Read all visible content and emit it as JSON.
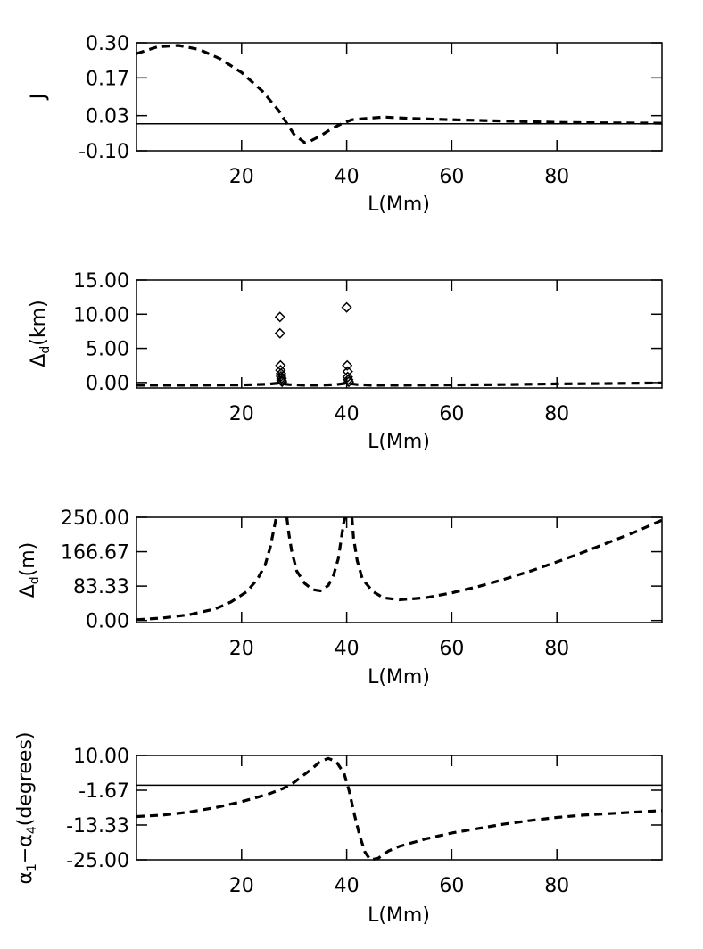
{
  "chart_data": [
    {
      "type": "line",
      "xlabel": "L(Mm)",
      "ylabel": "J",
      "xlim": [
        0,
        100
      ],
      "ylim": [
        -0.1,
        0.3
      ],
      "xticks": [
        20,
        40,
        60,
        80
      ],
      "xtick_labels": [
        "20",
        "40",
        "60",
        "80"
      ],
      "yticks": [
        -0.1,
        0.03,
        0.17,
        0.3
      ],
      "ytick_labels": [
        "-0.10",
        "0.03",
        "0.17",
        "0.30"
      ],
      "hline": 0.0,
      "series": [
        {
          "style": "dashed",
          "x": [
            0,
            4,
            8,
            12,
            16,
            20,
            24,
            27,
            30,
            32,
            33,
            35,
            37,
            39,
            41,
            44,
            47,
            52,
            60,
            70,
            80,
            90,
            100
          ],
          "y": [
            0.26,
            0.285,
            0.29,
            0.275,
            0.24,
            0.19,
            0.12,
            0.05,
            -0.04,
            -0.07,
            -0.065,
            -0.045,
            -0.02,
            0.0,
            0.015,
            0.02,
            0.025,
            0.02,
            0.015,
            0.01,
            0.005,
            0.003,
            0.002
          ]
        }
      ]
    },
    {
      "type": "scatter",
      "xlabel": "L(Mm)",
      "ylabel": "Δd(km)",
      "xlim": [
        0,
        100
      ],
      "ylim": [
        -0.8,
        15.0
      ],
      "xticks": [
        20,
        40,
        60,
        80
      ],
      "xtick_labels": [
        "20",
        "40",
        "60",
        "80"
      ],
      "yticks": [
        0.0,
        5.0,
        10.0,
        15.0
      ],
      "ytick_labels": [
        "0.00",
        "5.00",
        "10.00",
        "15.00"
      ],
      "series": [
        {
          "marker": "diamond",
          "x": [
            27.3,
            27.3,
            27.4,
            27.4,
            27.5,
            27.5,
            27.6,
            27.6,
            27.7,
            40.0,
            40.1,
            40.2,
            40.2,
            40.3,
            40.4
          ],
          "y": [
            9.6,
            7.2,
            2.5,
            1.8,
            1.3,
            0.9,
            0.6,
            0.3,
            0.1,
            11.0,
            2.5,
            1.6,
            0.8,
            0.4,
            0.1
          ]
        },
        {
          "style": "solid-thick",
          "x": [
            0,
            10,
            20,
            25,
            27,
            29,
            32,
            35,
            38,
            40,
            42,
            45,
            50,
            60,
            70,
            80,
            90,
            100
          ],
          "y": [
            -0.4,
            -0.4,
            -0.35,
            -0.25,
            -0.1,
            -0.3,
            -0.4,
            -0.4,
            -0.3,
            -0.1,
            -0.3,
            -0.4,
            -0.4,
            -0.35,
            -0.3,
            -0.2,
            -0.15,
            -0.05
          ]
        }
      ]
    },
    {
      "type": "line",
      "xlabel": "L(Mm)",
      "ylabel": "Δd(m)",
      "xlim": [
        0,
        100
      ],
      "ylim": [
        -5,
        250
      ],
      "xticks": [
        20,
        40,
        60,
        80
      ],
      "xtick_labels": [
        "20",
        "40",
        "60",
        "80"
      ],
      "yticks": [
        0.0,
        83.33,
        166.67,
        250.0
      ],
      "ytick_labels": [
        "0.00",
        "83.33",
        "166.67",
        "250.00"
      ],
      "series": [
        {
          "style": "dashed",
          "segments": [
            {
              "x": [
                0,
                5,
                10,
                15,
                18,
                21,
                23,
                24.5,
                25.5,
                26.2,
                26.6
              ],
              "y": [
                2,
                6,
                14,
                28,
                45,
                70,
                100,
                135,
                180,
                225,
                250
              ]
            },
            {
              "x": [
                28.6,
                29.0,
                29.5,
                30.5,
                32,
                33.5,
                35,
                36.5,
                37.5,
                38.4,
                39.0,
                39.4,
                39.7
              ],
              "y": [
                250,
                210,
                170,
                120,
                90,
                75,
                72,
                85,
                110,
                150,
                200,
                235,
                250
              ]
            },
            {
              "x": [
                41.0,
                41.3,
                42,
                43,
                45,
                47,
                50,
                55,
                60,
                65,
                70,
                75,
                80,
                85,
                90,
                95,
                100
              ],
              "y": [
                250,
                200,
                145,
                100,
                70,
                55,
                50,
                55,
                67,
                82,
                100,
                120,
                142,
                165,
                190,
                215,
                243
              ]
            }
          ]
        }
      ]
    },
    {
      "type": "line",
      "xlabel": "L(Mm)",
      "ylabel": "α1−α4(degrees)",
      "xlim": [
        0,
        100
      ],
      "ylim": [
        -25.0,
        10.0
      ],
      "xticks": [
        20,
        40,
        60,
        80
      ],
      "xtick_labels": [
        "20",
        "40",
        "60",
        "80"
      ],
      "yticks": [
        -25.0,
        -13.33,
        -1.67,
        10.0
      ],
      "ytick_labels": [
        "-25.00",
        "-13.33",
        "-1.67",
        "10.00"
      ],
      "hline": 0.0,
      "series": [
        {
          "style": "dashed",
          "x": [
            0,
            5,
            10,
            15,
            20,
            25,
            28,
            30,
            33,
            35,
            36.5,
            38,
            39.5,
            40.5,
            41.5,
            42.5,
            43.5,
            44.5,
            46,
            48,
            50,
            55,
            60,
            65,
            70,
            75,
            80,
            85,
            90,
            95,
            100
          ],
          "y": [
            -10.5,
            -10.0,
            -9.0,
            -7.5,
            -5.5,
            -3.0,
            -1.0,
            1.0,
            5.0,
            8.0,
            9.0,
            8.0,
            4.0,
            -2.0,
            -10.0,
            -17.0,
            -22.5,
            -25.0,
            -24.5,
            -22.0,
            -20.5,
            -18.0,
            -16.0,
            -14.5,
            -13.0,
            -11.8,
            -10.8,
            -10.0,
            -9.5,
            -9.0,
            -8.5
          ]
        }
      ]
    }
  ]
}
